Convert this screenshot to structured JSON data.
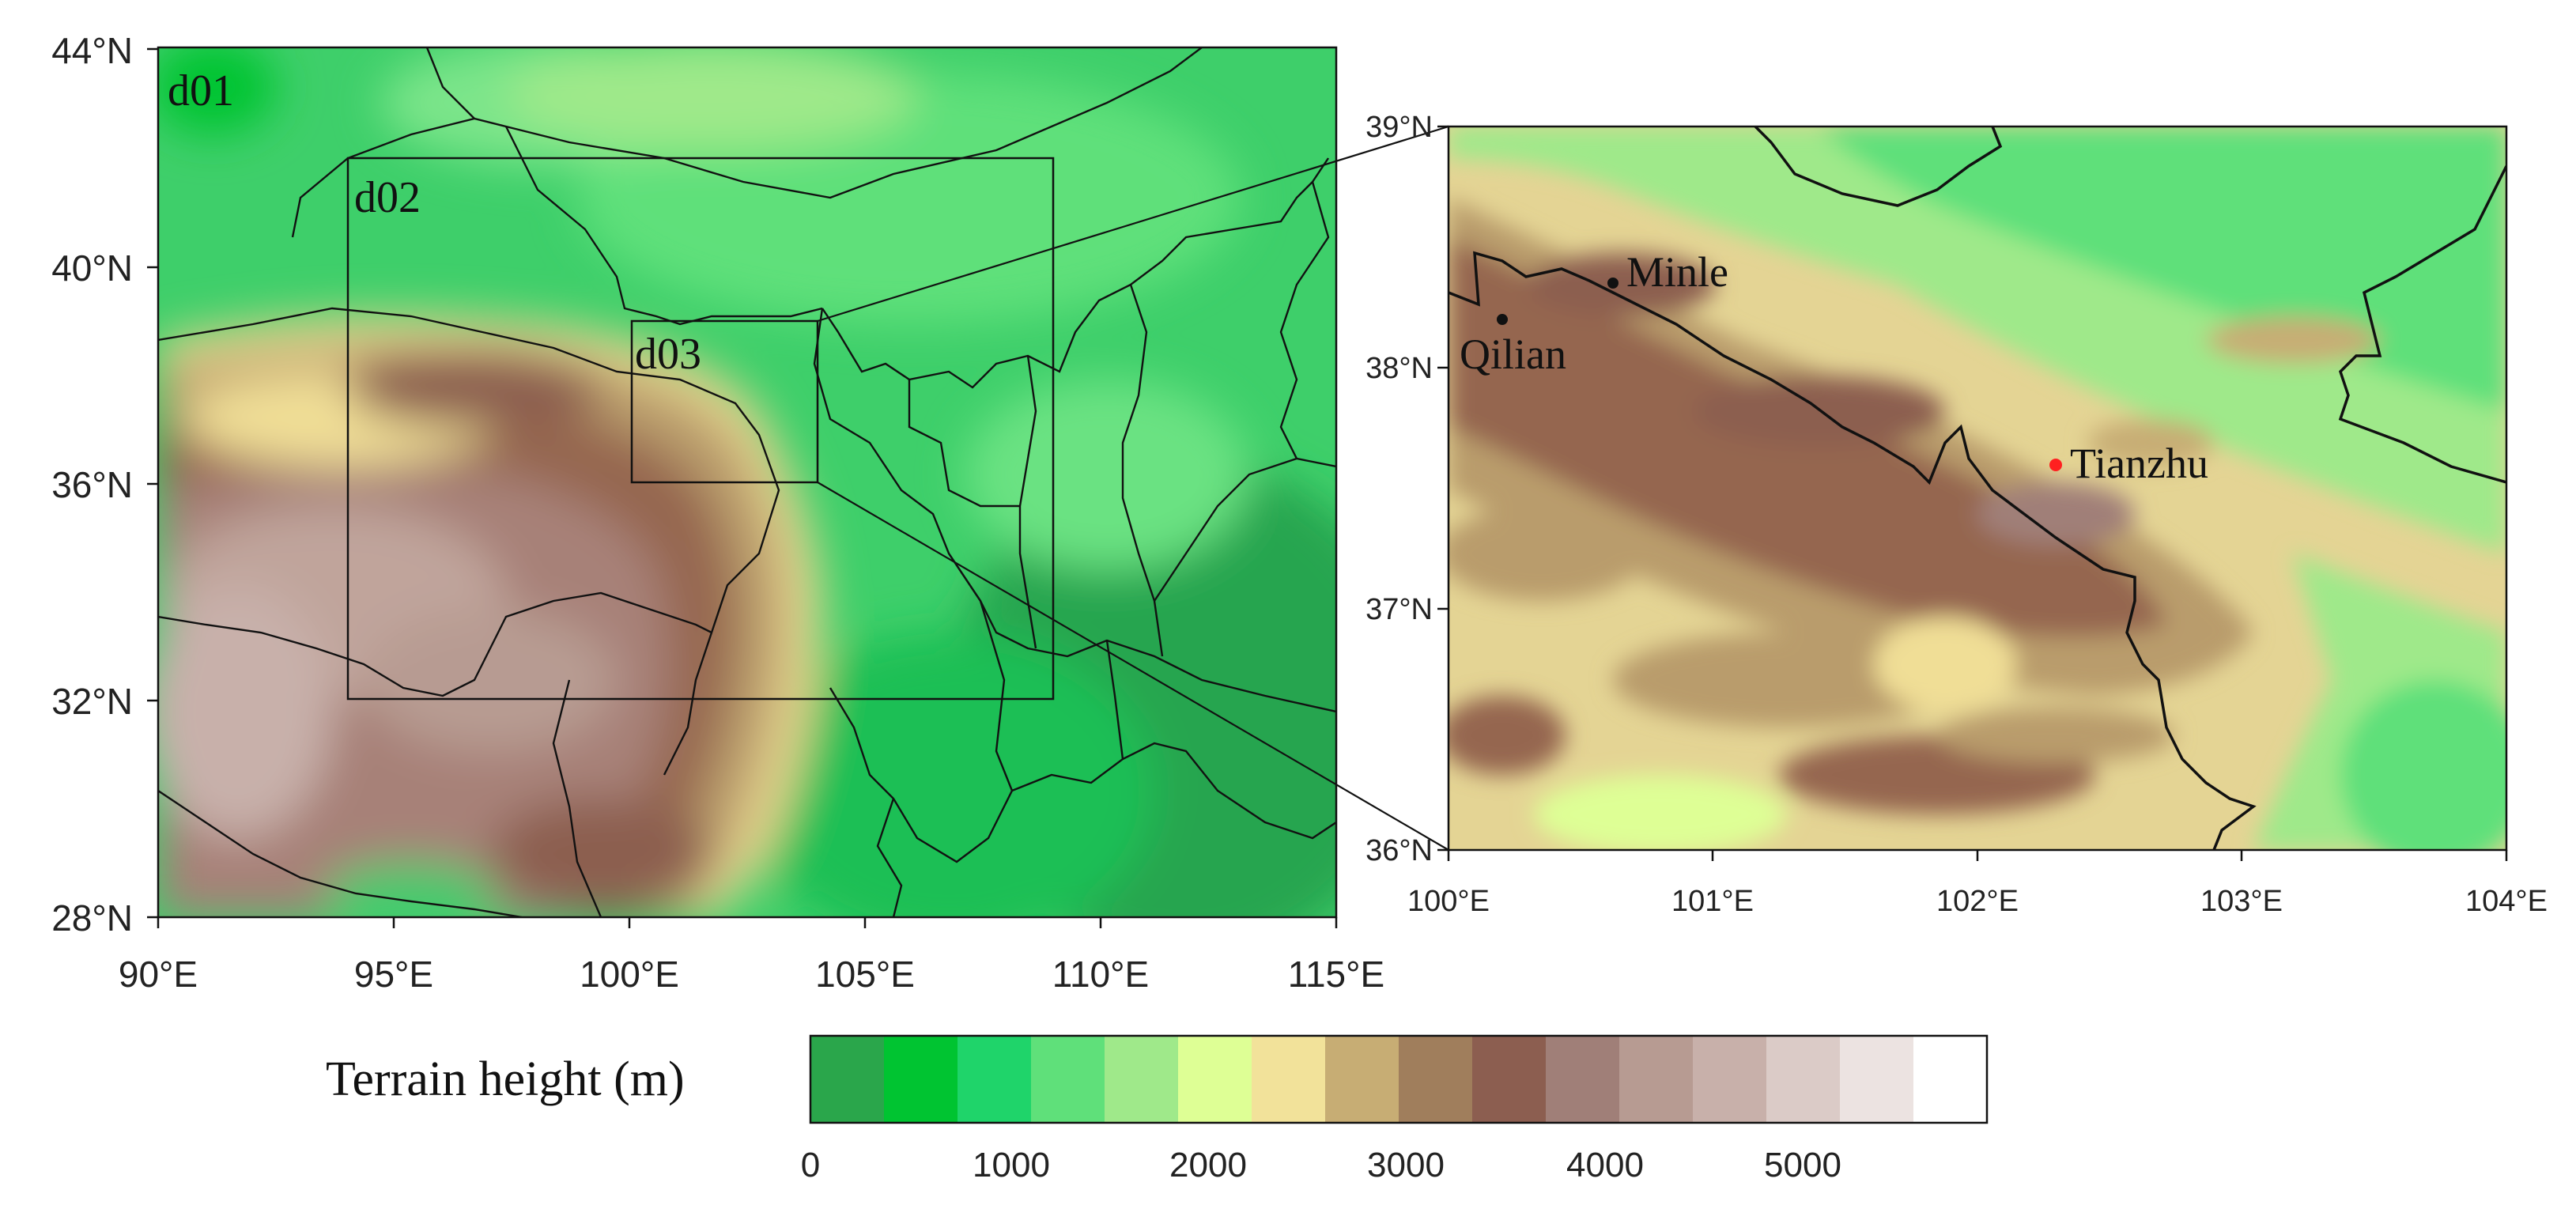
{
  "left_map": {
    "lat_ticks": [
      "44°N",
      "40°N",
      "36°N",
      "32°N",
      "28°N"
    ],
    "lon_ticks": [
      "90°E",
      "95°E",
      "100°E",
      "105°E",
      "110°E",
      "115°E"
    ],
    "domains": [
      "d01",
      "d02",
      "d03"
    ]
  },
  "right_map": {
    "lat_ticks": [
      "39°N",
      "38°N",
      "37°N",
      "36°N"
    ],
    "lon_ticks": [
      "100°E",
      "101°E",
      "102°E",
      "103°E",
      "104°E"
    ],
    "stations": [
      {
        "name": "Minle",
        "color": "#111111"
      },
      {
        "name": "Qilian",
        "color": "#111111"
      },
      {
        "name": "Tianzhu",
        "color": "#ff2020"
      }
    ]
  },
  "colorbar": {
    "label": "Terrain height (m)",
    "tick_labels": [
      "0",
      "1000",
      "2000",
      "3000",
      "4000",
      "5000"
    ],
    "colors": [
      "#2aa64b",
      "#00c431",
      "#1fd46a",
      "#5fe07a",
      "#9fe98a",
      "#deff95",
      "#f2e29a",
      "#c7ad74",
      "#a07e5c",
      "#8c5e50",
      "#a07f78",
      "#b79b92",
      "#c8b0aa",
      "#dbcbc7",
      "#ece3e1",
      "#ffffff"
    ]
  }
}
